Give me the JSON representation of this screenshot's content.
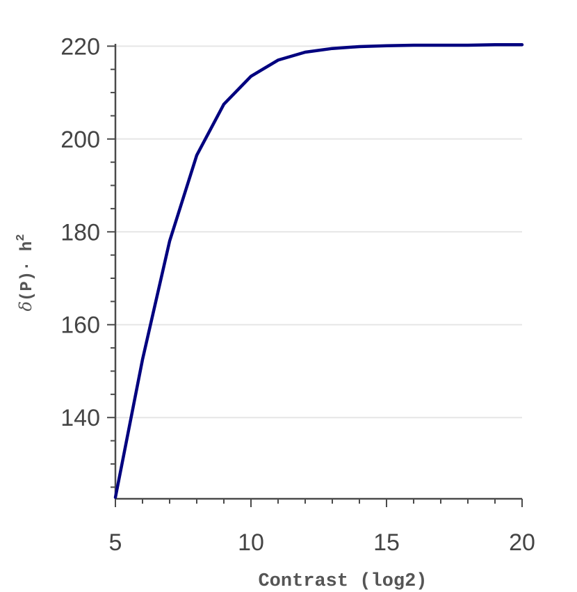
{
  "chart_data": {
    "type": "line",
    "title": "",
    "xlabel": "Contrast (log2)",
    "ylabel": {
      "symbol": "δ",
      "text": "(P)· h",
      "superscript": "2"
    },
    "xlim": [
      5,
      20
    ],
    "ylim": [
      122.5,
      220.5
    ],
    "xticks": [
      5,
      10,
      15,
      20
    ],
    "yticks": [
      140,
      160,
      180,
      200,
      220
    ],
    "x_minor_step": 1,
    "y_minor_step": 5,
    "grid": "horizontal",
    "series": [
      {
        "color": "#00007f",
        "x": [
          5,
          6,
          7,
          8,
          9,
          10,
          11,
          12,
          13,
          14,
          15,
          16,
          17,
          18,
          19,
          20
        ],
        "y": [
          122.8,
          152.5,
          178.0,
          196.5,
          207.5,
          213.5,
          217.0,
          218.7,
          219.5,
          219.9,
          220.1,
          220.2,
          220.2,
          220.2,
          220.3,
          220.3
        ]
      }
    ]
  }
}
